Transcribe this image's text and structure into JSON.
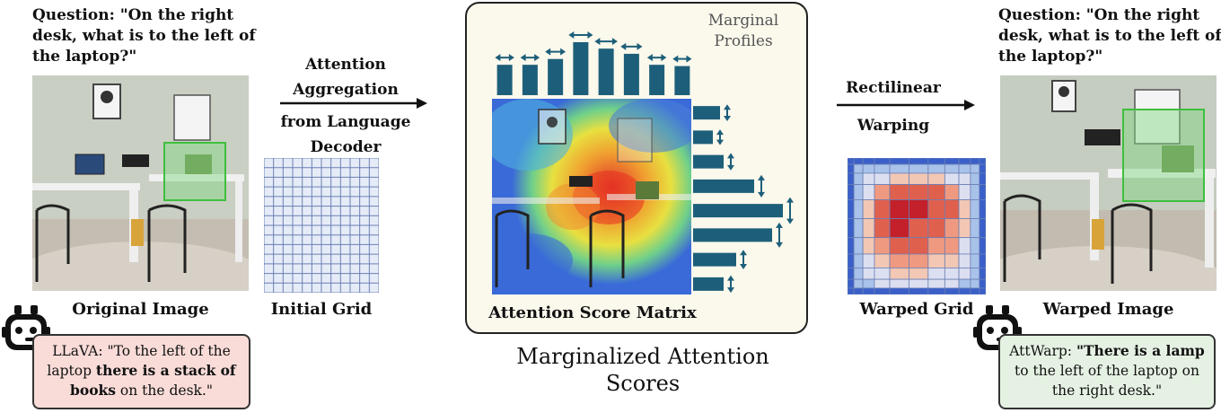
{
  "left_panel": {
    "question": "Question: \"On the right desk, what is to the left of the laptop?\"",
    "image_label": "Original Image",
    "answer_prefix": "LLaVA: ",
    "answer_plain_1": "\"To the left of the laptop ",
    "answer_bold": "there is a stack of books",
    "answer_plain_2": " on the desk.\"",
    "bubble_color": "#f9dcd8"
  },
  "arrow_1": {
    "line1": "Attention",
    "line2": "Aggregation",
    "line3": "from Language",
    "line4": "Decoder"
  },
  "initial_grid": {
    "label": "Initial Grid",
    "line_color": "#6a7fb5",
    "bg_color": "#e6ecf7"
  },
  "center_panel": {
    "marginal_label_1": "Marginal",
    "marginal_label_2": "Profiles",
    "matrix_label": "Attention Score Matrix",
    "caption_1": "Marginalized Attention",
    "caption_2": "Scores",
    "panel_bg": "#fbf8ec",
    "bar_color": "#1d5f7a",
    "top_profile": [
      0.47,
      0.47,
      0.56,
      0.82,
      0.72,
      0.64,
      0.47,
      0.45
    ],
    "right_profile": [
      0.3,
      0.22,
      0.34,
      0.68,
      1.0,
      0.88,
      0.48,
      0.34
    ]
  },
  "arrow_2": {
    "line1": "Rectilinear",
    "line2": "Warping"
  },
  "warped_grid": {
    "label": "Warped Grid",
    "cells": [
      [
        0,
        0,
        0,
        0,
        0,
        0,
        0,
        0,
        0,
        0,
        0
      ],
      [
        0,
        1,
        1,
        1,
        1,
        1,
        1,
        1,
        1,
        1,
        0
      ],
      [
        0,
        1,
        2,
        2,
        3,
        3,
        3,
        2,
        2,
        1,
        0
      ],
      [
        0,
        1,
        2,
        4,
        5,
        5,
        5,
        4,
        2,
        1,
        0
      ],
      [
        0,
        1,
        3,
        5,
        6,
        6,
        5,
        5,
        3,
        1,
        0
      ],
      [
        0,
        1,
        3,
        5,
        6,
        5,
        5,
        4,
        3,
        1,
        0
      ],
      [
        0,
        1,
        3,
        4,
        5,
        5,
        4,
        4,
        2,
        1,
        0
      ],
      [
        0,
        1,
        2,
        3,
        4,
        4,
        3,
        3,
        2,
        1,
        0
      ],
      [
        0,
        1,
        2,
        2,
        3,
        3,
        2,
        2,
        2,
        1,
        0
      ],
      [
        0,
        1,
        1,
        2,
        2,
        2,
        2,
        2,
        1,
        1,
        0
      ],
      [
        0,
        0,
        0,
        0,
        0,
        0,
        0,
        0,
        0,
        0,
        0
      ]
    ]
  },
  "right_panel": {
    "question": "Question: \"On the right desk, what is to the left of the laptop?\"",
    "image_label": "Warped Image",
    "answer_prefix": "AttWarp: ",
    "answer_bold": "\"There is a lamp",
    "answer_plain": " to the left of the laptop on the right desk.\"",
    "bubble_color": "#e5f2e3"
  },
  "icons": {
    "left_robot": "robot-icon",
    "right_robot": "robot-icon"
  }
}
